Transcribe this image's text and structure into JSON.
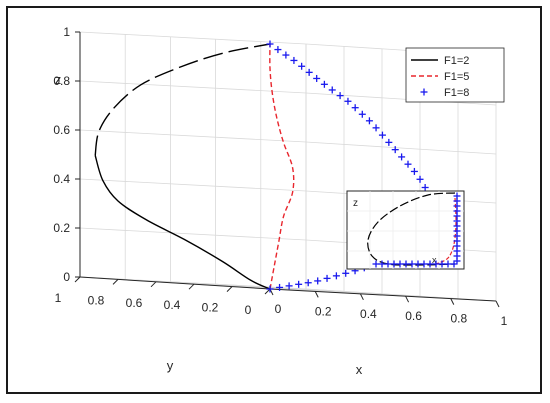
{
  "chart_data": {
    "type": "line",
    "view": "3d",
    "axes": {
      "x": {
        "label": "x",
        "range": [
          0,
          1
        ],
        "ticks": [
          "0",
          "0.2",
          "0.4",
          "0.6",
          "0.8",
          "1"
        ]
      },
      "y": {
        "label": "y",
        "range": [
          0,
          1
        ],
        "ticks": [
          "0",
          "0.2",
          "0.4",
          "0.6",
          "0.8",
          "1"
        ]
      },
      "z": {
        "label": "z",
        "range": [
          0,
          1
        ],
        "ticks": [
          "0",
          "0.2",
          "0.4",
          "0.6",
          "0.8",
          "1"
        ]
      }
    },
    "grid": true,
    "legend_position": "top-right",
    "legend": [
      "F1=2",
      "F1=5",
      "F1=8"
    ],
    "series": [
      {
        "name": "F1=2",
        "style": "solid-to-dashed black",
        "color": "#000000",
        "points": [
          [
            0,
            0,
            0
          ],
          [
            0,
            0.1,
            0.03
          ],
          [
            0,
            0.25,
            0.1
          ],
          [
            0,
            0.45,
            0.18
          ],
          [
            0,
            0.65,
            0.25
          ],
          [
            0,
            0.8,
            0.32
          ],
          [
            0,
            0.88,
            0.4
          ],
          [
            0,
            0.92,
            0.5
          ],
          [
            0,
            0.9,
            0.6
          ],
          [
            0,
            0.82,
            0.7
          ],
          [
            0,
            0.68,
            0.8
          ],
          [
            0,
            0.48,
            0.88
          ],
          [
            0,
            0.25,
            0.95
          ],
          [
            0,
            0,
            1
          ]
        ]
      },
      {
        "name": "F1=5",
        "style": "dashed red",
        "color": "#e8262d",
        "points": [
          [
            0,
            0,
            0
          ],
          [
            0.02,
            0,
            0.1
          ],
          [
            0.04,
            0,
            0.2
          ],
          [
            0.06,
            0,
            0.3
          ],
          [
            0.1,
            0,
            0.4
          ],
          [
            0.1,
            0,
            0.5
          ],
          [
            0.06,
            0,
            0.6
          ],
          [
            0.03,
            0,
            0.7
          ],
          [
            0.01,
            0,
            0.8
          ],
          [
            0,
            0,
            0.9
          ],
          [
            0,
            0,
            1
          ]
        ]
      },
      {
        "name": "F1=8",
        "style": "plus markers blue",
        "color": "#1a1aee",
        "points": [
          [
            0,
            0,
            0
          ],
          [
            0.1,
            0,
            0.02
          ],
          [
            0.2,
            0,
            0.04
          ],
          [
            0.3,
            0,
            0.07
          ],
          [
            0.4,
            0,
            0.1
          ],
          [
            0.5,
            0,
            0.14
          ],
          [
            0.6,
            0,
            0.19
          ],
          [
            0.7,
            0,
            0.25
          ],
          [
            0.74,
            0,
            0.3
          ],
          [
            0.72,
            0,
            0.4
          ],
          [
            0.65,
            0,
            0.5
          ],
          [
            0.55,
            0,
            0.6
          ],
          [
            0.45,
            0,
            0.7
          ],
          [
            0.35,
            0,
            0.78
          ],
          [
            0.22,
            0,
            0.86
          ],
          [
            0.12,
            0,
            0.93
          ],
          [
            0.05,
            0,
            0.97
          ],
          [
            0,
            0,
            1
          ]
        ]
      }
    ],
    "inset": {
      "axis_label": "z",
      "tick_label": "x",
      "description_series": [
        "F1=2",
        "F1=5",
        "F1=8"
      ]
    }
  }
}
